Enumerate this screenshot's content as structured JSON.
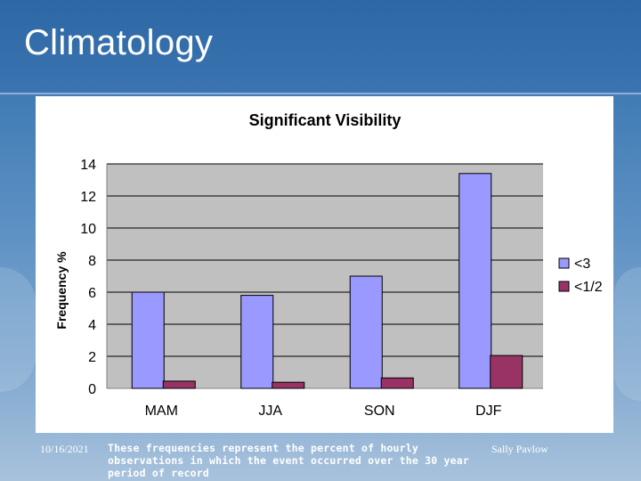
{
  "slide": {
    "title": "Climatology",
    "footer_date": "10/16/2021",
    "footer_note": "These frequencies represent the percent of hourly observations in which the event occurred over the 30 year period of record",
    "footer_author": "Sally Pavlow"
  },
  "colors": {
    "series1": "#9999ff",
    "series2": "#993366",
    "plot_bg": "#c0c0c0"
  },
  "chart_data": {
    "type": "bar",
    "title": "Significant Visibility",
    "xlabel": "",
    "ylabel": "Frequency %",
    "categories": [
      "MAM",
      "JJA",
      "SON",
      "DJF"
    ],
    "ylim": [
      0,
      14
    ],
    "yticks": [
      0,
      2,
      4,
      6,
      8,
      10,
      12,
      14
    ],
    "grid": true,
    "legend_position": "right",
    "series": [
      {
        "name": "<3",
        "values": [
          6.0,
          5.8,
          7.0,
          13.4
        ]
      },
      {
        "name": "<1/2",
        "values": [
          0.45,
          0.38,
          0.65,
          2.05
        ]
      }
    ]
  }
}
